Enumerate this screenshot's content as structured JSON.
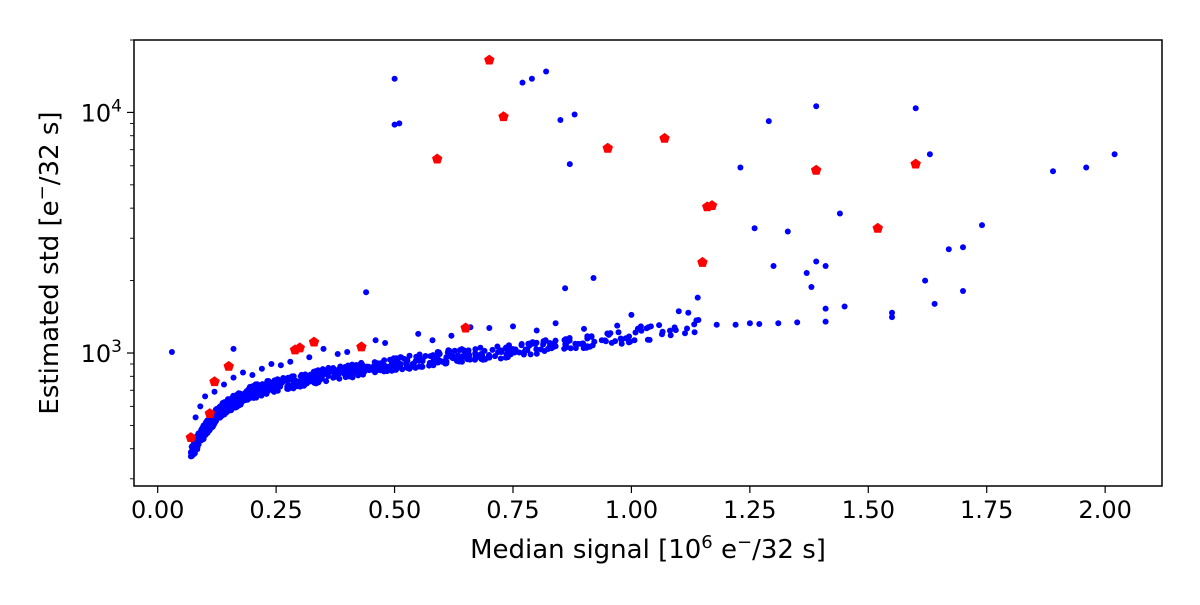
{
  "chart_data": {
    "type": "scatter",
    "xlabel": "Median signal [10^6 e^-/32 s]",
    "ylabel": "Estimated std [e^-/32 s]",
    "xlim": [
      -0.05,
      2.12
    ],
    "ylim": [
      280,
      20000
    ],
    "yscale": "log",
    "grid": false,
    "x_ticks": [
      0.0,
      0.25,
      0.5,
      0.75,
      1.0,
      1.25,
      1.5,
      1.75,
      2.0
    ],
    "x_tick_labels": [
      "0.00",
      "0.25",
      "0.50",
      "0.75",
      "1.00",
      "1.25",
      "1.50",
      "1.75",
      "2.00"
    ],
    "y_ticks": [
      1000,
      10000
    ],
    "y_tick_labels": [
      "10^3",
      "10^4"
    ],
    "colors": {
      "blue": "#0000ff",
      "red": "#ff0000"
    },
    "series": [
      {
        "color": "#0000ff",
        "marker": "circle",
        "dense_curve": {
          "points": [
            [
              0.07,
              380
            ],
            [
              0.09,
              450
            ],
            [
              0.11,
              510
            ],
            [
              0.13,
              570
            ],
            [
              0.15,
              610
            ],
            [
              0.18,
              660
            ],
            [
              0.21,
              700
            ],
            [
              0.25,
              740
            ],
            [
              0.3,
              770
            ],
            [
              0.35,
              810
            ],
            [
              0.4,
              840
            ],
            [
              0.45,
              870
            ],
            [
              0.5,
              900
            ],
            [
              0.55,
              930
            ],
            [
              0.6,
              960
            ],
            [
              0.65,
              980
            ],
            [
              0.7,
              1000
            ],
            [
              0.75,
              1030
            ],
            [
              0.8,
              1060
            ],
            [
              0.85,
              1090
            ],
            [
              0.9,
              1120
            ],
            [
              0.95,
              1150
            ],
            [
              1.0,
              1180
            ],
            [
              1.05,
              1220
            ],
            [
              1.1,
              1260
            ],
            [
              1.15,
              1300
            ]
          ],
          "spread": 0.13
        },
        "points": [
          [
            0.03,
            1010
          ],
          [
            0.16,
            1040
          ],
          [
            0.44,
            1790
          ],
          [
            0.5,
            13800
          ],
          [
            0.5,
            8900
          ],
          [
            0.51,
            9000
          ],
          [
            0.77,
            13300
          ],
          [
            0.79,
            13800
          ],
          [
            0.82,
            14800
          ],
          [
            0.85,
            9300
          ],
          [
            0.88,
            9800
          ],
          [
            0.87,
            6100
          ],
          [
            0.86,
            1860
          ],
          [
            0.92,
            2050
          ],
          [
            1.1,
            1490
          ],
          [
            1.12,
            1470
          ],
          [
            1.14,
            1700
          ],
          [
            1.23,
            5900
          ],
          [
            1.26,
            3300
          ],
          [
            1.29,
            9200
          ],
          [
            1.3,
            2300
          ],
          [
            1.33,
            3200
          ],
          [
            1.37,
            2150
          ],
          [
            1.38,
            1880
          ],
          [
            1.39,
            10600
          ],
          [
            1.39,
            2400
          ],
          [
            1.41,
            2300
          ],
          [
            1.41,
            1530
          ],
          [
            1.41,
            1350
          ],
          [
            1.44,
            3800
          ],
          [
            1.45,
            1560
          ],
          [
            1.55,
            1470
          ],
          [
            1.55,
            1410
          ],
          [
            1.6,
            10400
          ],
          [
            1.62,
            2000
          ],
          [
            1.63,
            6700
          ],
          [
            1.64,
            1600
          ],
          [
            1.67,
            2700
          ],
          [
            1.7,
            2750
          ],
          [
            1.7,
            1810
          ],
          [
            1.74,
            3400
          ],
          [
            1.89,
            5700
          ],
          [
            1.96,
            5900
          ],
          [
            2.02,
            6700
          ],
          [
            1.18,
            1310
          ],
          [
            1.22,
            1310
          ],
          [
            1.25,
            1330
          ],
          [
            1.27,
            1320
          ],
          [
            1.31,
            1330
          ],
          [
            1.35,
            1340
          ],
          [
            1.0,
            1440
          ],
          [
            1.02,
            1290
          ],
          [
            0.97,
            1300
          ],
          [
            0.9,
            1260
          ],
          [
            0.84,
            1330
          ],
          [
            0.8,
            1240
          ],
          [
            0.75,
            1290
          ],
          [
            0.7,
            1270
          ],
          [
            0.66,
            1280
          ],
          [
            0.62,
            1180
          ],
          [
            0.58,
            1130
          ],
          [
            0.55,
            1200
          ],
          [
            0.48,
            1100
          ],
          [
            0.46,
            1130
          ],
          [
            0.4,
            1010
          ],
          [
            0.38,
            990
          ],
          [
            0.35,
            1040
          ],
          [
            0.32,
            960
          ],
          [
            0.28,
            920
          ],
          [
            0.26,
            890
          ],
          [
            0.24,
            900
          ],
          [
            0.22,
            860
          ],
          [
            0.2,
            810
          ],
          [
            0.18,
            830
          ],
          [
            0.16,
            790
          ],
          [
            0.14,
            740
          ],
          [
            0.12,
            690
          ],
          [
            0.1,
            660
          ],
          [
            0.09,
            600
          ],
          [
            0.08,
            540
          ]
        ]
      },
      {
        "color": "#ff0000",
        "marker": "pentagon",
        "points": [
          [
            0.07,
            445
          ],
          [
            0.11,
            560
          ],
          [
            0.12,
            760
          ],
          [
            0.15,
            880
          ],
          [
            0.29,
            1030
          ],
          [
            0.3,
            1050
          ],
          [
            0.33,
            1110
          ],
          [
            0.43,
            1060
          ],
          [
            0.59,
            6400
          ],
          [
            0.65,
            1270
          ],
          [
            0.7,
            16500
          ],
          [
            0.73,
            9600
          ],
          [
            0.95,
            7100
          ],
          [
            1.07,
            7800
          ],
          [
            1.15,
            2380
          ],
          [
            1.16,
            4050
          ],
          [
            1.17,
            4100
          ],
          [
            1.39,
            5750
          ],
          [
            1.52,
            3300
          ],
          [
            1.6,
            6100
          ]
        ]
      }
    ]
  }
}
